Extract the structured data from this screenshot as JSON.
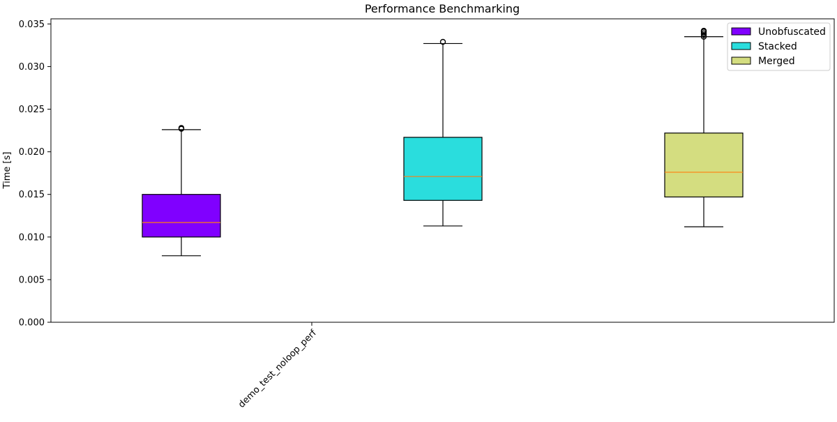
{
  "chart_data": {
    "type": "box",
    "title": "Performance Benchmarking",
    "xlabel": "",
    "ylabel": "Time [s]",
    "ylim": [
      0,
      0.0356
    ],
    "yticks": [
      "0.000",
      "0.005",
      "0.010",
      "0.015",
      "0.020",
      "0.025",
      "0.030",
      "0.035"
    ],
    "categories": [
      "demo_test_noloop_perf"
    ],
    "grid": false,
    "legend_position": "top-right",
    "series": [
      {
        "name": "Unobfuscated",
        "color": "#8000ff",
        "whisker_low": 0.0078,
        "q1": 0.01,
        "median": 0.0117,
        "q3": 0.015,
        "whisker_high": 0.0226,
        "outliers": [
          0.0227,
          0.0228
        ]
      },
      {
        "name": "Stacked",
        "color": "#2adddd",
        "whisker_low": 0.0113,
        "q1": 0.0143,
        "median": 0.0171,
        "q3": 0.0217,
        "whisker_high": 0.0327,
        "outliers": [
          0.0329
        ]
      },
      {
        "name": "Merged",
        "color": "#d4dd80",
        "whisker_low": 0.0112,
        "q1": 0.0147,
        "median": 0.0176,
        "q3": 0.0222,
        "whisker_high": 0.0335,
        "outliers": [
          0.0335,
          0.0337,
          0.0339,
          0.0341,
          0.0342
        ]
      }
    ],
    "median_color": "#ff7f0e"
  }
}
